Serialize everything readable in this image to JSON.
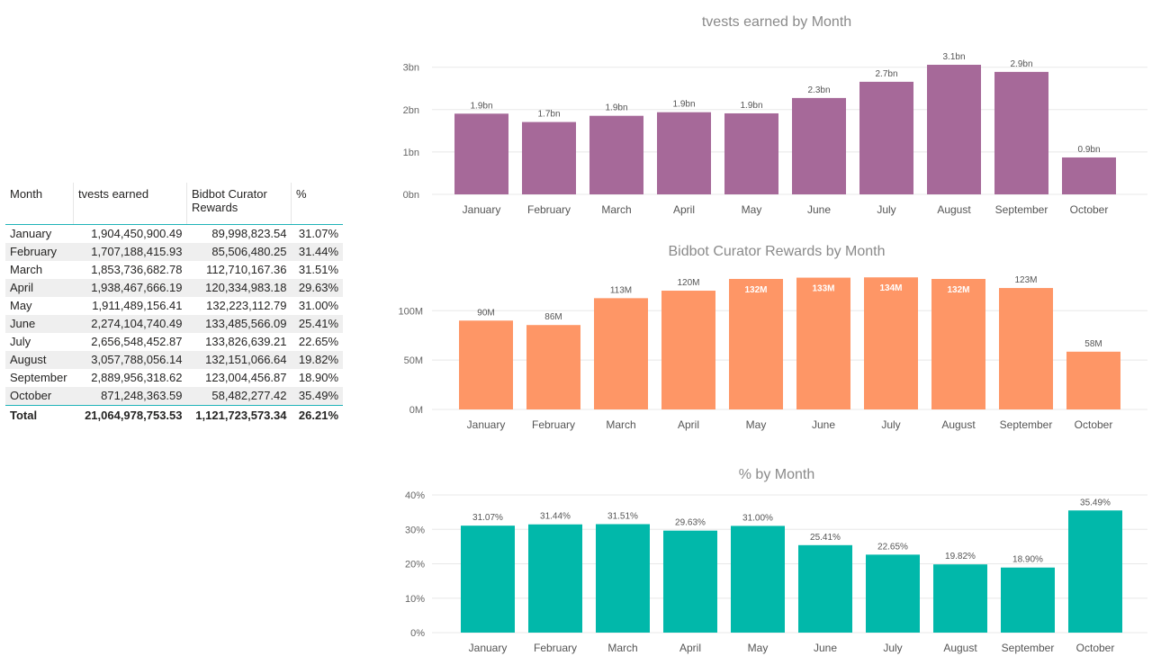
{
  "table": {
    "headers": [
      "Month",
      "tvests earned",
      "Bidbot Curator Rewards",
      "%"
    ],
    "rows": [
      [
        "January",
        "1,904,450,900.49",
        "89,998,823.54",
        "31.07%"
      ],
      [
        "February",
        "1,707,188,415.93",
        "85,506,480.25",
        "31.44%"
      ],
      [
        "March",
        "1,853,736,682.78",
        "112,710,167.36",
        "31.51%"
      ],
      [
        "April",
        "1,938,467,666.19",
        "120,334,983.18",
        "29.63%"
      ],
      [
        "May",
        "1,911,489,156.41",
        "132,223,112.79",
        "31.00%"
      ],
      [
        "June",
        "2,274,104,740.49",
        "133,485,566.09",
        "25.41%"
      ],
      [
        "July",
        "2,656,548,452.87",
        "133,826,639.21",
        "22.65%"
      ],
      [
        "August",
        "3,057,788,056.14",
        "132,151,066.64",
        "19.82%"
      ],
      [
        "September",
        "2,889,956,318.62",
        "123,004,456.87",
        "18.90%"
      ],
      [
        "October",
        "871,248,363.59",
        "58,482,277.42",
        "35.49%"
      ]
    ],
    "total": [
      "Total",
      "21,064,978,753.53",
      "1,121,723,573.34",
      "26.21%"
    ]
  },
  "chart_data": [
    {
      "type": "bar",
      "title": "tvests earned by Month",
      "categories": [
        "January",
        "February",
        "March",
        "April",
        "May",
        "June",
        "July",
        "August",
        "September",
        "October"
      ],
      "values": [
        1.90445,
        1.70719,
        1.85374,
        1.93847,
        1.91149,
        2.2741,
        2.65655,
        3.05779,
        2.88996,
        0.87125
      ],
      "data_labels": [
        "1.9bn",
        "1.7bn",
        "1.9bn",
        "1.9bn",
        "1.9bn",
        "2.3bn",
        "2.7bn",
        "3.1bn",
        "2.9bn",
        "0.9bn"
      ],
      "y_ticks": [
        0,
        1,
        2,
        3
      ],
      "y_tick_labels": [
        "0bn",
        "1bn",
        "2bn",
        "3bn"
      ],
      "ylim": [
        0,
        3.1
      ],
      "color": "#a66999",
      "inside_labels": []
    },
    {
      "type": "bar",
      "title": "Bidbot Curator Rewards by Month",
      "categories": [
        "January",
        "February",
        "March",
        "April",
        "May",
        "June",
        "July",
        "August",
        "September",
        "October"
      ],
      "values": [
        90.0,
        85.5,
        112.7,
        120.3,
        132.2,
        133.5,
        133.8,
        132.2,
        123.0,
        58.5
      ],
      "data_labels": [
        "90M",
        "86M",
        "113M",
        "120M",
        "132M",
        "133M",
        "134M",
        "132M",
        "123M",
        "58M"
      ],
      "y_ticks": [
        0,
        50,
        100
      ],
      "y_tick_labels": [
        "0M",
        "50M",
        "100M"
      ],
      "ylim": [
        0,
        134
      ],
      "color": "#fe9666",
      "inside_labels": [
        4,
        5,
        6,
        7
      ]
    },
    {
      "type": "bar",
      "title": "% by Month",
      "categories": [
        "January",
        "February",
        "March",
        "April",
        "May",
        "June",
        "July",
        "August",
        "September",
        "October"
      ],
      "values": [
        31.07,
        31.44,
        31.51,
        29.63,
        31.0,
        25.41,
        22.65,
        19.82,
        18.9,
        35.49
      ],
      "data_labels": [
        "31.07%",
        "31.44%",
        "31.51%",
        "29.63%",
        "31.00%",
        "25.41%",
        "22.65%",
        "19.82%",
        "18.90%",
        "35.49%"
      ],
      "y_ticks": [
        0,
        10,
        20,
        30,
        40
      ],
      "y_tick_labels": [
        "0%",
        "10%",
        "20%",
        "30%",
        "40%"
      ],
      "ylim": [
        0,
        40
      ],
      "color": "#01b8aa",
      "inside_labels": []
    }
  ]
}
